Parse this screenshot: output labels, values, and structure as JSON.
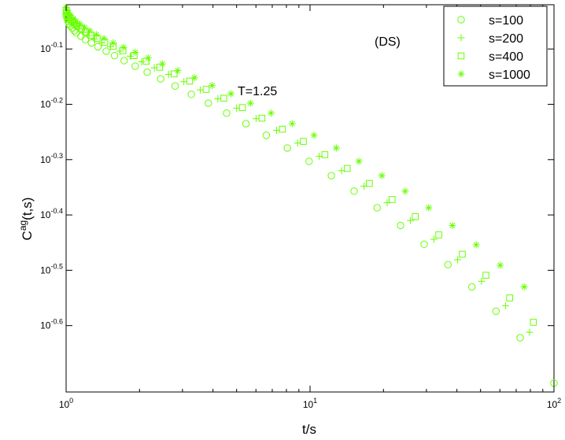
{
  "chart_data": {
    "type": "scatter",
    "x_scale": "log",
    "y_scale": "log",
    "xlim": [
      1,
      100
    ],
    "ylim_log10": [
      -0.72,
      -0.02
    ],
    "x_ticks": [
      {
        "base": "10",
        "exp": "0",
        "value": 1
      },
      {
        "base": "10",
        "exp": "1",
        "value": 10
      },
      {
        "base": "10",
        "exp": "2",
        "value": 100
      }
    ],
    "y_ticks": [
      {
        "base": "10",
        "exp": "-0.1",
        "value": -0.1
      },
      {
        "base": "10",
        "exp": "-0.2",
        "value": -0.2
      },
      {
        "base": "10",
        "exp": "-0.3",
        "value": -0.3
      },
      {
        "base": "10",
        "exp": "-0.4",
        "value": -0.4
      },
      {
        "base": "10",
        "exp": "-0.5",
        "value": -0.5
      },
      {
        "base": "10",
        "exp": "-0.6",
        "value": -0.6
      }
    ],
    "xlabel": "t/s",
    "ylabel_base": "C",
    "ylabel_sup": "ag",
    "ylabel_rest": "(t,s)",
    "annotations": [
      {
        "text": "(DS)"
      },
      {
        "text": "T=1.25"
      }
    ],
    "legend_position": "top-right",
    "grid": false,
    "color": "#66ff00",
    "series": [
      {
        "name": "s=100",
        "marker": "circle",
        "x": [
          1.0,
          1.01,
          1.02,
          1.03,
          1.04,
          1.06,
          1.08,
          1.1,
          1.15,
          1.2,
          1.27,
          1.35,
          1.46,
          1.58,
          1.73,
          1.92,
          2.15,
          2.44,
          2.8,
          3.26,
          3.83,
          4.55,
          5.46,
          6.62,
          8.07,
          9.91,
          12.23,
          15.16,
          18.84,
          23.5,
          29.36,
          36.75,
          46.07,
          57.83,
          72.65,
          100.0
        ],
        "y": [
          -0.04,
          -0.045,
          -0.05,
          -0.055,
          -0.058,
          -0.062,
          -0.067,
          -0.071,
          -0.077,
          -0.083,
          -0.089,
          -0.096,
          -0.104,
          -0.112,
          -0.121,
          -0.131,
          -0.142,
          -0.154,
          -0.167,
          -0.182,
          -0.198,
          -0.216,
          -0.235,
          -0.256,
          -0.279,
          -0.303,
          -0.329,
          -0.357,
          -0.387,
          -0.419,
          -0.453,
          -0.49,
          -0.53,
          -0.574,
          -0.622,
          -0.704
        ]
      },
      {
        "name": "s=200",
        "marker": "plus",
        "x": [
          1.0,
          1.01,
          1.02,
          1.03,
          1.05,
          1.07,
          1.1,
          1.13,
          1.18,
          1.24,
          1.31,
          1.4,
          1.52,
          1.66,
          1.83,
          2.04,
          2.3,
          2.63,
          3.04,
          3.55,
          4.19,
          5.0,
          6.01,
          7.29,
          8.89,
          10.91,
          13.46,
          16.66,
          20.7,
          25.79,
          32.2,
          40.27,
          50.43,
          63.25,
          79.4
        ],
        "y": [
          -0.035,
          -0.04,
          -0.044,
          -0.048,
          -0.052,
          -0.056,
          -0.06,
          -0.064,
          -0.07,
          -0.076,
          -0.082,
          -0.089,
          -0.096,
          -0.104,
          -0.113,
          -0.123,
          -0.134,
          -0.146,
          -0.159,
          -0.174,
          -0.19,
          -0.207,
          -0.226,
          -0.247,
          -0.27,
          -0.294,
          -0.32,
          -0.348,
          -0.378,
          -0.41,
          -0.444,
          -0.481,
          -0.52,
          -0.564,
          -0.612
        ]
      },
      {
        "name": "s=400",
        "marker": "square",
        "x": [
          1.0,
          1.01,
          1.02,
          1.04,
          1.06,
          1.08,
          1.11,
          1.15,
          1.2,
          1.26,
          1.34,
          1.44,
          1.56,
          1.71,
          1.9,
          2.13,
          2.42,
          2.77,
          3.21,
          3.75,
          4.43,
          5.28,
          6.35,
          7.7,
          9.39,
          11.5,
          14.2,
          17.5,
          21.7,
          27.0,
          33.7,
          42.1,
          52.6,
          65.8,
          82.3
        ],
        "y": [
          -0.03,
          -0.035,
          -0.04,
          -0.044,
          -0.049,
          -0.053,
          -0.058,
          -0.063,
          -0.069,
          -0.075,
          -0.081,
          -0.088,
          -0.095,
          -0.103,
          -0.112,
          -0.122,
          -0.133,
          -0.145,
          -0.158,
          -0.173,
          -0.189,
          -0.206,
          -0.225,
          -0.245,
          -0.267,
          -0.291,
          -0.316,
          -0.343,
          -0.372,
          -0.403,
          -0.436,
          -0.471,
          -0.509,
          -0.55,
          -0.594
        ]
      },
      {
        "name": "s=1000",
        "marker": "star",
        "x": [
          1.0,
          1.01,
          1.02,
          1.04,
          1.07,
          1.1,
          1.14,
          1.19,
          1.25,
          1.33,
          1.43,
          1.56,
          1.72,
          1.92,
          2.17,
          2.48,
          2.87,
          3.36,
          3.97,
          4.74,
          5.7,
          6.92,
          8.45,
          10.38,
          12.81,
          15.86,
          19.7,
          24.55,
          30.65,
          38.33,
          48.0,
          60.2,
          75.5
        ],
        "y": [
          -0.025,
          -0.03,
          -0.035,
          -0.04,
          -0.045,
          -0.05,
          -0.055,
          -0.061,
          -0.067,
          -0.074,
          -0.081,
          -0.089,
          -0.097,
          -0.106,
          -0.116,
          -0.127,
          -0.139,
          -0.152,
          -0.166,
          -0.181,
          -0.198,
          -0.216,
          -0.235,
          -0.256,
          -0.279,
          -0.303,
          -0.329,
          -0.357,
          -0.387,
          -0.419,
          -0.454,
          -0.491,
          -0.53
        ]
      }
    ]
  }
}
